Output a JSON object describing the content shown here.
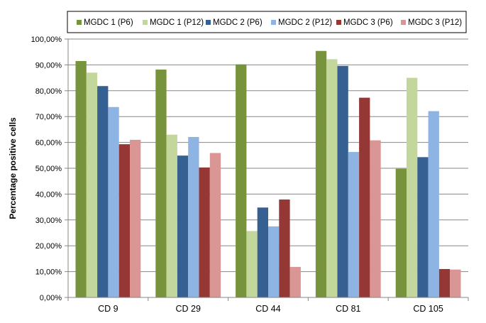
{
  "chart_data": {
    "type": "bar",
    "title": "",
    "xlabel": "",
    "ylabel": "Percentage positive cells",
    "categories": [
      "CD 9",
      "CD 29",
      "CD 44",
      "CD 81",
      "CD 105"
    ],
    "ylim": [
      0,
      100
    ],
    "y_ticks": [
      "0,00%",
      "10,00%",
      "20,00%",
      "30,00%",
      "40,00%",
      "50,00%",
      "60,00%",
      "70,00%",
      "80,00%",
      "90,00%",
      "100,00%"
    ],
    "grid": true,
    "legend_position": "top",
    "series": [
      {
        "name": "MGDC 1 (P6)",
        "color": "#77933c",
        "values": [
          91.5,
          88.2,
          90.2,
          95.4,
          49.8
        ]
      },
      {
        "name": "MGDC 1 (P12)",
        "color": "#c3d69b",
        "values": [
          87.0,
          63.0,
          25.7,
          92.2,
          85.0
        ]
      },
      {
        "name": "MGDC 2 (P6)",
        "color": "#376092",
        "values": [
          81.8,
          54.9,
          34.8,
          89.6,
          54.3
        ]
      },
      {
        "name": "MGDC 2 (P12)",
        "color": "#8eb4e3",
        "values": [
          73.7,
          62.1,
          27.5,
          56.3,
          72.1
        ]
      },
      {
        "name": "MGDC 3 (P6)",
        "color": "#953735",
        "values": [
          59.3,
          50.3,
          37.9,
          77.3,
          11.0
        ]
      },
      {
        "name": "MGDC 3 (P12)",
        "color": "#d99694",
        "values": [
          61.0,
          55.9,
          11.8,
          60.8,
          10.8
        ]
      }
    ]
  }
}
